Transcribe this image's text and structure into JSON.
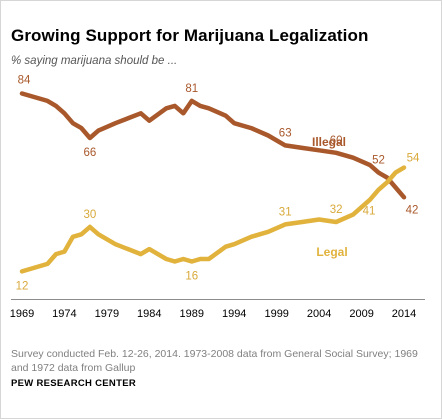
{
  "title": "Growing Support for Marijuana Legalization",
  "subtitle": "% saying marijuana should be ...",
  "note": "Survey conducted Feb. 12-26, 2014. 1973-2008 data from General Social Survey; 1969 and 1972 data from Gallup",
  "source": "PEW RESEARCH CENTER",
  "chart_data": {
    "type": "line",
    "title": "Growing Support for Marijuana Legalization",
    "xlabel": "",
    "ylabel": "",
    "x_ticks": [
      "1969",
      "1974",
      "1979",
      "1984",
      "1989",
      "1994",
      "1999",
      "2004",
      "2009",
      "2014"
    ],
    "xlim": [
      1969,
      2014
    ],
    "ylim": [
      0,
      100
    ],
    "grid": false,
    "legend": "inline labels",
    "series": [
      {
        "name": "Illegal",
        "color": "#a9582b",
        "x": [
          1969,
          1972,
          1973,
          1974,
          1975,
          1976,
          1977,
          1978,
          1980,
          1983,
          1984,
          1986,
          1987,
          1988,
          1989,
          1990,
          1991,
          1993,
          1994,
          1996,
          1998,
          2000,
          2002,
          2004,
          2006,
          2008,
          2010,
          2011,
          2012,
          2013,
          2014
        ],
        "y": [
          84,
          81,
          79,
          76,
          72,
          70,
          66,
          69,
          72,
          76,
          73,
          78,
          79,
          76,
          81,
          79,
          78,
          75,
          72,
          70,
          67,
          63,
          62,
          61,
          60,
          58,
          55,
          52,
          50,
          46,
          42
        ],
        "labels": [
          {
            "x": 1969,
            "y": 84,
            "text": "84"
          },
          {
            "x": 1977,
            "y": 66,
            "text": "66"
          },
          {
            "x": 1989,
            "y": 81,
            "text": "81"
          },
          {
            "x": 2000,
            "y": 63,
            "text": "63"
          },
          {
            "x": 2006,
            "y": 60,
            "text": "60"
          },
          {
            "x": 2011,
            "y": 52,
            "text": "52"
          },
          {
            "x": 2014,
            "y": 42,
            "text": "42"
          }
        ]
      },
      {
        "name": "Legal",
        "color": "#e1b33d",
        "x": [
          1969,
          1972,
          1973,
          1974,
          1975,
          1976,
          1977,
          1978,
          1980,
          1983,
          1984,
          1986,
          1987,
          1988,
          1989,
          1990,
          1991,
          1993,
          1994,
          1996,
          1998,
          2000,
          2002,
          2004,
          2006,
          2008,
          2010,
          2011,
          2012,
          2013,
          2014
        ],
        "y": [
          12,
          15,
          19,
          20,
          26,
          27,
          30,
          27,
          23,
          19,
          21,
          17,
          16,
          17,
          16,
          17,
          17,
          22,
          23,
          26,
          28,
          31,
          32,
          33,
          32,
          35,
          41,
          45,
          48,
          52,
          54
        ],
        "labels": [
          {
            "x": 1969,
            "y": 12,
            "text": "12"
          },
          {
            "x": 1977,
            "y": 30,
            "text": "30"
          },
          {
            "x": 1989,
            "y": 16,
            "text": "16"
          },
          {
            "x": 2000,
            "y": 31,
            "text": "31"
          },
          {
            "x": 2006,
            "y": 32,
            "text": "32"
          },
          {
            "x": 2010,
            "y": 41,
            "text": "41"
          },
          {
            "x": 2014,
            "y": 54,
            "text": "54"
          }
        ]
      }
    ]
  }
}
